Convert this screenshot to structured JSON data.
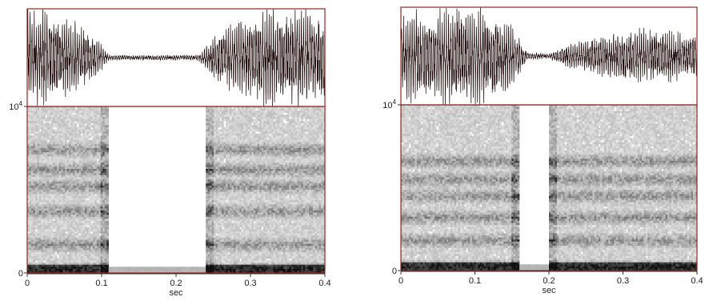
{
  "panels": [
    {
      "id": "left",
      "x_axis": {
        "ticks": [
          "0",
          "0.1",
          "0.2",
          "0.3",
          "0.4"
        ],
        "label": "sec"
      },
      "y_axis": {
        "top_label": "10",
        "top_label_exp": "4",
        "bottom_label": "0"
      },
      "waveform_envelope": [
        [
          0.0,
          0.95
        ],
        [
          0.02,
          0.9
        ],
        [
          0.05,
          0.8
        ],
        [
          0.08,
          0.55
        ],
        [
          0.1,
          0.25
        ],
        [
          0.11,
          0.05
        ],
        [
          0.23,
          0.05
        ],
        [
          0.25,
          0.45
        ],
        [
          0.28,
          0.7
        ],
        [
          0.32,
          0.9
        ],
        [
          0.36,
          0.95
        ],
        [
          0.4,
          0.9
        ]
      ],
      "spectrogram_silence": [
        0.11,
        0.24
      ],
      "spectrogram_dark_bands": [
        0.02,
        0.17,
        0.37,
        0.52,
        0.62,
        0.74
      ]
    },
    {
      "id": "right",
      "x_axis": {
        "ticks": [
          "0",
          "0.1",
          "0.2",
          "0.3",
          "0.4"
        ],
        "label": "sec"
      },
      "y_axis": {
        "top_label": "10",
        "top_label_exp": "4",
        "bottom_label": "0"
      },
      "waveform_envelope": [
        [
          0.0,
          0.8
        ],
        [
          0.04,
          0.85
        ],
        [
          0.08,
          0.95
        ],
        [
          0.12,
          0.85
        ],
        [
          0.15,
          0.6
        ],
        [
          0.17,
          0.08
        ],
        [
          0.2,
          0.05
        ],
        [
          0.22,
          0.2
        ],
        [
          0.26,
          0.35
        ],
        [
          0.3,
          0.5
        ],
        [
          0.34,
          0.55
        ],
        [
          0.37,
          0.45
        ],
        [
          0.4,
          0.4
        ]
      ],
      "spectrogram_silence": [
        0.16,
        0.2
      ],
      "spectrogram_dark_bands": [
        0.02,
        0.18,
        0.32,
        0.45,
        0.55,
        0.66
      ]
    }
  ],
  "colors": {
    "frame": "#8b2a1e",
    "waveform": "#1a0606",
    "spectro_dark": "#111111",
    "axis": "#333333"
  }
}
